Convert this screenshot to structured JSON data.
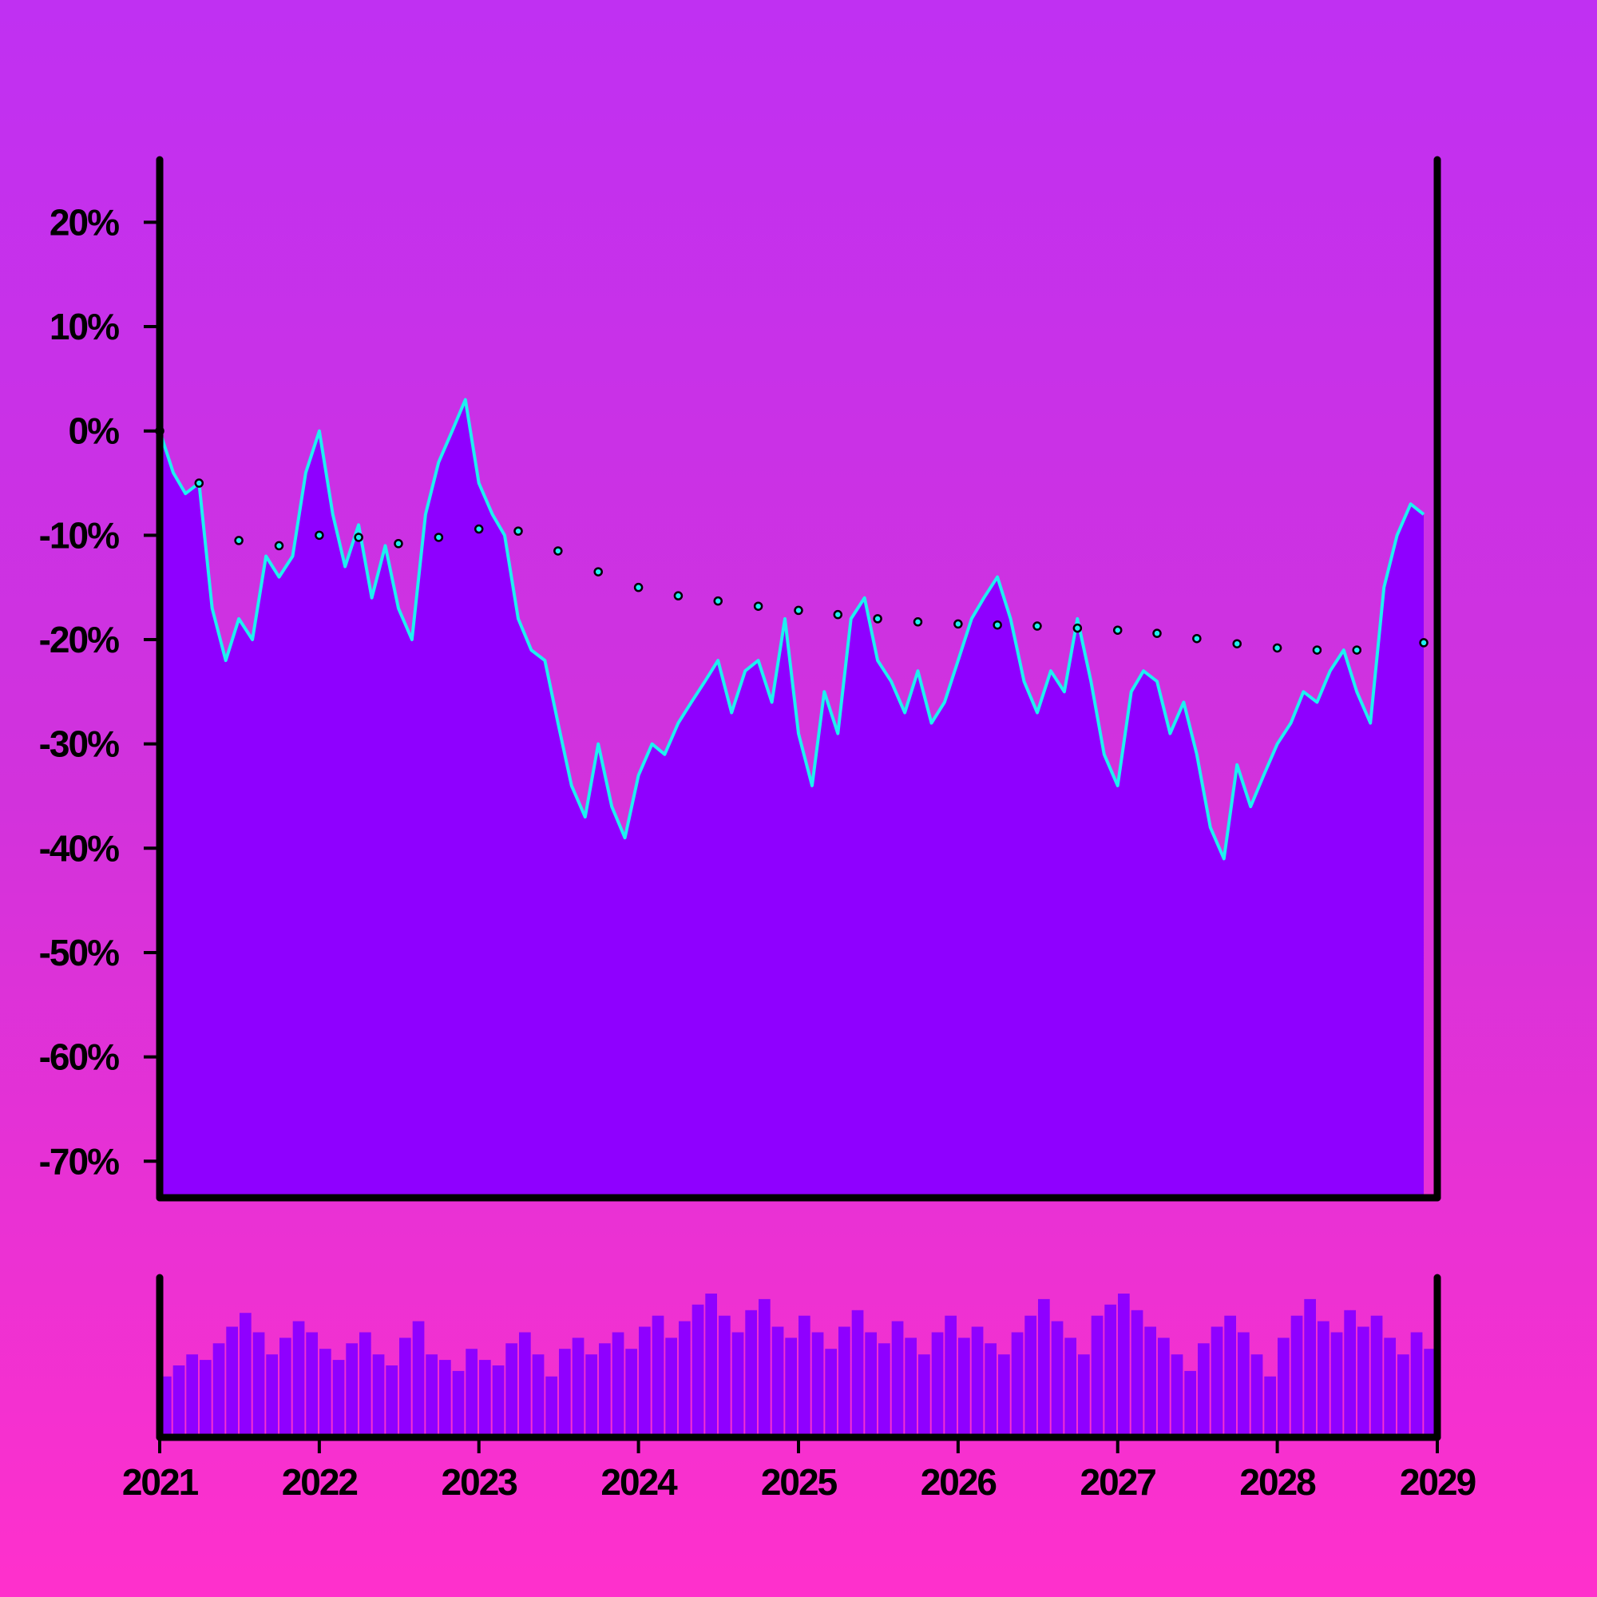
{
  "chart_data": {
    "type": "area",
    "title": "",
    "xlabel": "",
    "ylabel": "",
    "x_range": [
      "2021-01-01",
      "2029-01-01"
    ],
    "x_ticks": [
      "2021",
      "2022",
      "2023",
      "2024",
      "2025",
      "2026",
      "2027",
      "2028",
      "2029"
    ],
    "ylim": [
      -73.5,
      26
    ],
    "y_ticks": [
      "20%",
      "10%",
      "0%",
      "-10%",
      "-20%",
      "-30%",
      "-40%",
      "-50%",
      "-60%",
      "-70%"
    ],
    "y_tick_values": [
      20,
      10,
      0,
      -10,
      -20,
      -30,
      -40,
      -50,
      -60,
      -70
    ],
    "grid": false,
    "legend": "none",
    "colors": {
      "area_fill": "#8f00ff",
      "line": "#1ef0f0",
      "trend_marker": "#1ef0f0",
      "trend_outline": "#000000",
      "volume_bars": "#8f00ff",
      "axes": "#000000"
    },
    "series": [
      {
        "kind": "area-line",
        "x": [
          "2021-01",
          "2021-02",
          "2021-03",
          "2021-04",
          "2021-05",
          "2021-06",
          "2021-07",
          "2021-08",
          "2021-09",
          "2021-10",
          "2021-11",
          "2021-12",
          "2022-01",
          "2022-02",
          "2022-03",
          "2022-04",
          "2022-05",
          "2022-06",
          "2022-07",
          "2022-08",
          "2022-09",
          "2022-10",
          "2022-11",
          "2022-12",
          "2023-01",
          "2023-02",
          "2023-03",
          "2023-04",
          "2023-05",
          "2023-06",
          "2023-07",
          "2023-08",
          "2023-09",
          "2023-10",
          "2023-11",
          "2023-12",
          "2024-01",
          "2024-02",
          "2024-03",
          "2024-04",
          "2024-05",
          "2024-06",
          "2024-07",
          "2024-08",
          "2024-09",
          "2024-10",
          "2024-11",
          "2024-12",
          "2025-01",
          "2025-02",
          "2025-03",
          "2025-04",
          "2025-05",
          "2025-06",
          "2025-07",
          "2025-08",
          "2025-09",
          "2025-10",
          "2025-11",
          "2025-12",
          "2026-01",
          "2026-02",
          "2026-03",
          "2026-04",
          "2026-05",
          "2026-06",
          "2026-07",
          "2026-08",
          "2026-09",
          "2026-10",
          "2026-11",
          "2026-12",
          "2027-01",
          "2027-02",
          "2027-03",
          "2027-04",
          "2027-05",
          "2027-06",
          "2027-07",
          "2027-08",
          "2027-09",
          "2027-10",
          "2027-11",
          "2027-12",
          "2028-01",
          "2028-02",
          "2028-03",
          "2028-04",
          "2028-05",
          "2028-06",
          "2028-07",
          "2028-08",
          "2028-09",
          "2028-10",
          "2028-11",
          "2028-12"
        ],
        "values": [
          0,
          -4,
          -6,
          -5,
          -17,
          -22,
          -18,
          -20,
          -12,
          -14,
          -12,
          -4,
          0,
          -8,
          -13,
          -9,
          -16,
          -11,
          -17,
          -20,
          -8,
          -3,
          0,
          3,
          -5,
          -8,
          -10,
          -18,
          -21,
          -22,
          -28,
          -34,
          -37,
          -30,
          -36,
          -39,
          -33,
          -30,
          -31,
          -28,
          -26,
          -24,
          -22,
          -27,
          -23,
          -22,
          -26,
          -18,
          -29,
          -34,
          -25,
          -29,
          -18,
          -16,
          -22,
          -24,
          -27,
          -23,
          -28,
          -26,
          -22,
          -18,
          -16,
          -14,
          -18,
          -24,
          -27,
          -23,
          -25,
          -18,
          -24,
          -31,
          -34,
          -25,
          -23,
          -24,
          -29,
          -26,
          -31,
          -38,
          -41,
          -32,
          -36,
          -33,
          -30,
          -28,
          -25,
          -26,
          -23,
          -21,
          -25,
          -28,
          -15,
          -10,
          -7,
          -8
        ]
      },
      {
        "kind": "trend-dots",
        "x": [
          "2021-01",
          "2021-04",
          "2021-07",
          "2021-10",
          "2022-01",
          "2022-04",
          "2022-07",
          "2022-10",
          "2023-01",
          "2023-04",
          "2023-07",
          "2023-10",
          "2024-01",
          "2024-04",
          "2024-07",
          "2024-10",
          "2025-01",
          "2025-04",
          "2025-07",
          "2025-10",
          "2026-01",
          "2026-04",
          "2026-07",
          "2026-10",
          "2027-01",
          "2027-04",
          "2027-07",
          "2027-10",
          "2028-01",
          "2028-04",
          "2028-07",
          "2028-12"
        ],
        "values": [
          0,
          -5,
          -10.5,
          -11,
          -10,
          -10.2,
          -10.8,
          -10.2,
          -9.4,
          -9.6,
          -11.5,
          -13.5,
          -15,
          -15.8,
          -16.3,
          -16.8,
          -17.2,
          -17.6,
          -18,
          -18.3,
          -18.5,
          -18.6,
          -18.7,
          -18.9,
          -19.1,
          -19.4,
          -19.9,
          -20.4,
          -20.8,
          -21,
          -21,
          -20.3
        ]
      }
    ],
    "volume": {
      "x_range": [
        "2021-01-01",
        "2029-01-01"
      ],
      "values": [
        22,
        26,
        30,
        28,
        34,
        40,
        45,
        38,
        30,
        36,
        42,
        38,
        32,
        28,
        34,
        38,
        30,
        26,
        36,
        42,
        30,
        28,
        24,
        32,
        28,
        26,
        34,
        38,
        30,
        22,
        32,
        36,
        30,
        34,
        38,
        32,
        40,
        44,
        36,
        42,
        48,
        52,
        44,
        38,
        46,
        50,
        40,
        36,
        44,
        38,
        32,
        40,
        46,
        38,
        34,
        42,
        36,
        30,
        38,
        44,
        36,
        40,
        34,
        30,
        38,
        44,
        50,
        42,
        36,
        30,
        44,
        48,
        52,
        46,
        40,
        36,
        30,
        24,
        34,
        40,
        44,
        38,
        30,
        22,
        36,
        44,
        50,
        42,
        38,
        46,
        40,
        44,
        36,
        30,
        38,
        32
      ]
    }
  }
}
